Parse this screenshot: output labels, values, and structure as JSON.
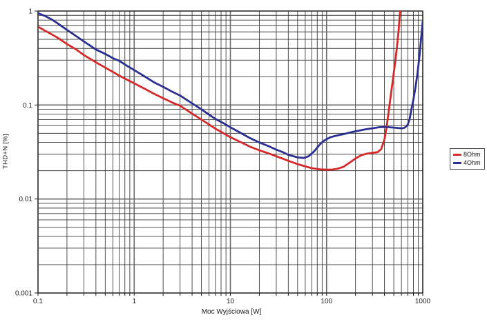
{
  "chart_data": {
    "type": "line",
    "title": "",
    "xlabel": "Moc Wyjściowa [W]",
    "ylabel": "THD+N [%]",
    "x_scale": "log",
    "y_scale": "log",
    "xlim": [
      0.1,
      1000
    ],
    "ylim": [
      0.001,
      1
    ],
    "x_ticks": {
      "values": [
        0.1,
        1,
        10,
        100,
        1000
      ],
      "labels": [
        "0.1",
        "1",
        "10",
        "100",
        "1000"
      ]
    },
    "y_ticks": {
      "values": [
        1,
        0.1,
        0.01,
        0.001
      ],
      "labels": [
        "1",
        "0.1",
        "0.01",
        "0.001"
      ]
    },
    "grid": {
      "major": true,
      "minor": true
    },
    "legend": {
      "position": "right-outside",
      "entries": [
        {
          "label": "8Ohm",
          "color": "#d42a2a"
        },
        {
          "label": "4Ohm",
          "color": "#2b3090"
        }
      ]
    },
    "series": [
      {
        "name": "8Ohm",
        "color": "#d42a2a",
        "points": [
          [
            0.1,
            0.68
          ],
          [
            0.13,
            0.585
          ],
          [
            0.16,
            0.52
          ],
          [
            0.2,
            0.445
          ],
          [
            0.25,
            0.39
          ],
          [
            0.3,
            0.34
          ],
          [
            0.4,
            0.285
          ],
          [
            0.5,
            0.25
          ],
          [
            0.6,
            0.225
          ],
          [
            0.7,
            0.205
          ],
          [
            0.85,
            0.185
          ],
          [
            1,
            0.17
          ],
          [
            1.3,
            0.148
          ],
          [
            1.6,
            0.132
          ],
          [
            2,
            0.118
          ],
          [
            2.5,
            0.106
          ],
          [
            3,
            0.098
          ],
          [
            4,
            0.081
          ],
          [
            5,
            0.07
          ],
          [
            6,
            0.062
          ],
          [
            7,
            0.056
          ],
          [
            8.5,
            0.05
          ],
          [
            10,
            0.0455
          ],
          [
            13,
            0.04
          ],
          [
            16,
            0.036
          ],
          [
            20,
            0.033
          ],
          [
            25,
            0.0305
          ],
          [
            30,
            0.0285
          ],
          [
            40,
            0.0255
          ],
          [
            50,
            0.0235
          ],
          [
            60,
            0.0222
          ],
          [
            70,
            0.0213
          ],
          [
            85,
            0.0207
          ],
          [
            100,
            0.0205
          ],
          [
            115,
            0.0206
          ],
          [
            130,
            0.021
          ],
          [
            150,
            0.022
          ],
          [
            175,
            0.0245
          ],
          [
            200,
            0.027
          ],
          [
            230,
            0.0292
          ],
          [
            260,
            0.0303
          ],
          [
            300,
            0.031
          ],
          [
            340,
            0.0315
          ],
          [
            370,
            0.034
          ],
          [
            400,
            0.043
          ],
          [
            420,
            0.057
          ],
          [
            440,
            0.082
          ],
          [
            460,
            0.115
          ],
          [
            480,
            0.16
          ],
          [
            500,
            0.22
          ],
          [
            520,
            0.3
          ],
          [
            540,
            0.42
          ],
          [
            560,
            0.6
          ],
          [
            572,
            0.8
          ],
          [
            582,
            1.02
          ],
          [
            586,
            1.12
          ]
        ]
      },
      {
        "name": "4Ohm",
        "color": "#2b3090",
        "points": [
          [
            0.1,
            0.95
          ],
          [
            0.12,
            0.88
          ],
          [
            0.14,
            0.81
          ],
          [
            0.16,
            0.74
          ],
          [
            0.2,
            0.63
          ],
          [
            0.25,
            0.54
          ],
          [
            0.3,
            0.475
          ],
          [
            0.4,
            0.39
          ],
          [
            0.5,
            0.35
          ],
          [
            0.6,
            0.315
          ],
          [
            0.7,
            0.295
          ],
          [
            0.85,
            0.26
          ],
          [
            1,
            0.235
          ],
          [
            1.3,
            0.2
          ],
          [
            1.6,
            0.175
          ],
          [
            2,
            0.156
          ],
          [
            2.5,
            0.138
          ],
          [
            3,
            0.126
          ],
          [
            4,
            0.104
          ],
          [
            5,
            0.09
          ],
          [
            6,
            0.079
          ],
          [
            7,
            0.071
          ],
          [
            8.5,
            0.064
          ],
          [
            10,
            0.058
          ],
          [
            13,
            0.05
          ],
          [
            16,
            0.0445
          ],
          [
            20,
            0.04
          ],
          [
            25,
            0.0365
          ],
          [
            30,
            0.0335
          ],
          [
            35,
            0.0315
          ],
          [
            40,
            0.0295
          ],
          [
            50,
            0.0277
          ],
          [
            58,
            0.0273
          ],
          [
            65,
            0.0285
          ],
          [
            75,
            0.0325
          ],
          [
            85,
            0.038
          ],
          [
            95,
            0.042
          ],
          [
            110,
            0.0455
          ],
          [
            130,
            0.0475
          ],
          [
            150,
            0.049
          ],
          [
            175,
            0.051
          ],
          [
            200,
            0.0525
          ],
          [
            250,
            0.055
          ],
          [
            300,
            0.0565
          ],
          [
            350,
            0.058
          ],
          [
            400,
            0.0585
          ],
          [
            450,
            0.058
          ],
          [
            500,
            0.0575
          ],
          [
            550,
            0.057
          ],
          [
            600,
            0.0565
          ],
          [
            640,
            0.057
          ],
          [
            670,
            0.059
          ],
          [
            700,
            0.062
          ],
          [
            730,
            0.071
          ],
          [
            760,
            0.088
          ],
          [
            800,
            0.115
          ],
          [
            840,
            0.155
          ],
          [
            880,
            0.215
          ],
          [
            920,
            0.32
          ],
          [
            960,
            0.5
          ],
          [
            1000,
            0.78
          ]
        ]
      }
    ]
  },
  "colors": {
    "background": "#ffffff",
    "grid_minor": "#3c3c3c",
    "grid_major": "#6a6a6a",
    "axis": "#1c1c1c",
    "text": "#1a1a1a"
  }
}
